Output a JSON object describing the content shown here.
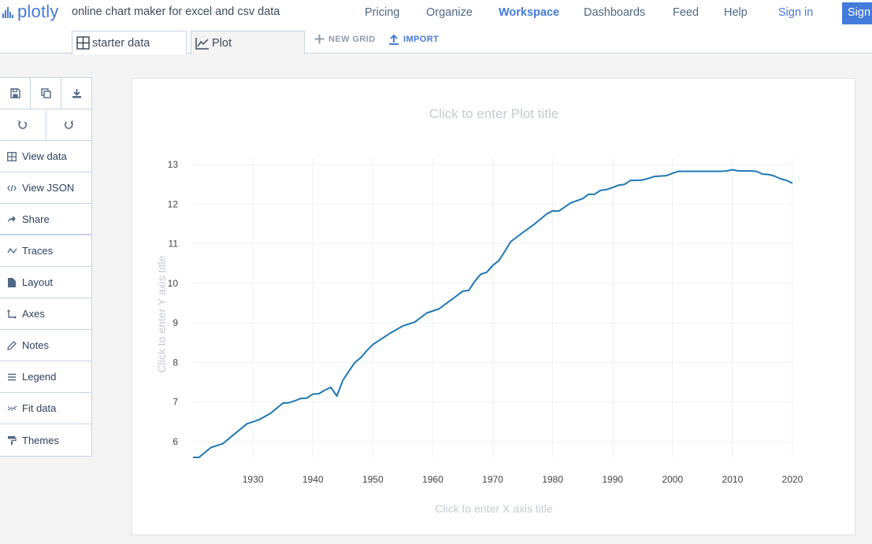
{
  "header": {
    "logo_text": "plotly",
    "tagline": "online chart maker for excel and csv data",
    "nav": [
      "Pricing",
      "Organize",
      "Workspace",
      "Dashboards",
      "Feed",
      "Help"
    ],
    "active_nav": "Workspace",
    "signin_label": "Sign in",
    "signup_label": "Sign",
    "accent_color": "#447adb"
  },
  "tabs": {
    "grid_label": "starter data",
    "plot_label": "Plot",
    "new_grid_label": "NEW GRID",
    "import_label": "IMPORT"
  },
  "toolbar": {
    "icons": [
      "save-icon",
      "copy-icon",
      "download-icon"
    ],
    "history_icons": [
      "undo-icon",
      "redo-icon"
    ]
  },
  "sidebar": {
    "items": [
      {
        "label": "View data",
        "icon": "grid-icon"
      },
      {
        "label": "View JSON",
        "icon": "code-icon"
      },
      {
        "label": "Share",
        "icon": "share-icon"
      },
      {
        "label": "Traces",
        "icon": "traces-icon"
      },
      {
        "label": "Layout",
        "icon": "layout-icon"
      },
      {
        "label": "Axes",
        "icon": "axes-icon"
      },
      {
        "label": "Notes",
        "icon": "pencil-icon"
      },
      {
        "label": "Legend",
        "icon": "legend-icon"
      },
      {
        "label": "Fit data",
        "icon": "fit-icon"
      },
      {
        "label": "Themes",
        "icon": "paint-roller-icon"
      }
    ]
  },
  "chart_data": {
    "type": "line",
    "title_placeholder": "Click to enter Plot title",
    "xlabel_placeholder": "Click to enter X axis title",
    "ylabel_placeholder": "Click to enter Y axis title",
    "xlim": [
      1920,
      2020
    ],
    "ylim": [
      5.6,
      13.1
    ],
    "xticks": [
      1930,
      1940,
      1950,
      1960,
      1970,
      1980,
      1990,
      2000,
      2010,
      2020
    ],
    "yticks": [
      6,
      7,
      8,
      9,
      10,
      11,
      12,
      13
    ],
    "grid": true,
    "line_color": "#1f77b4",
    "series": [
      {
        "x": [
          1920,
          1921,
          1923,
          1925,
          1927,
          1929,
          1931,
          1933,
          1935,
          1936,
          1937,
          1938,
          1939,
          1940,
          1941,
          1942,
          1943,
          1944,
          1945,
          1946,
          1947,
          1948,
          1949,
          1950,
          1951,
          1953,
          1955,
          1957,
          1959,
          1961,
          1963,
          1965,
          1966,
          1967,
          1968,
          1969,
          1970,
          1971,
          1972,
          1973,
          1975,
          1977,
          1979,
          1980,
          1981,
          1983,
          1985,
          1986,
          1987,
          1988,
          1989,
          1990,
          1991,
          1992,
          1993,
          1994,
          1995,
          1996,
          1997,
          1998,
          1999,
          2000,
          2001,
          2002,
          2003,
          2004,
          2005,
          2006,
          2007,
          2008,
          2009,
          2010,
          2011,
          2012,
          2013,
          2014,
          2015,
          2016,
          2017,
          2018,
          2019,
          2020
        ],
        "y": [
          5.6,
          5.6,
          5.85,
          5.95,
          6.2,
          6.45,
          6.55,
          6.72,
          6.97,
          6.98,
          7.03,
          7.09,
          7.1,
          7.2,
          7.21,
          7.3,
          7.37,
          7.15,
          7.55,
          7.78,
          8.0,
          8.12,
          8.3,
          8.45,
          8.55,
          8.75,
          8.92,
          9.02,
          9.25,
          9.35,
          9.57,
          9.8,
          9.82,
          10.05,
          10.23,
          10.28,
          10.45,
          10.57,
          10.8,
          11.05,
          11.28,
          11.5,
          11.75,
          11.83,
          11.82,
          12.03,
          12.14,
          12.25,
          12.25,
          12.35,
          12.37,
          12.42,
          12.48,
          12.5,
          12.6,
          12.6,
          12.61,
          12.65,
          12.7,
          12.71,
          12.72,
          12.78,
          12.83,
          12.83,
          12.83,
          12.83,
          12.83,
          12.83,
          12.83,
          12.83,
          12.84,
          12.87,
          12.84,
          12.84,
          12.84,
          12.83,
          12.76,
          12.75,
          12.71,
          12.64,
          12.6,
          12.53
        ]
      }
    ]
  }
}
